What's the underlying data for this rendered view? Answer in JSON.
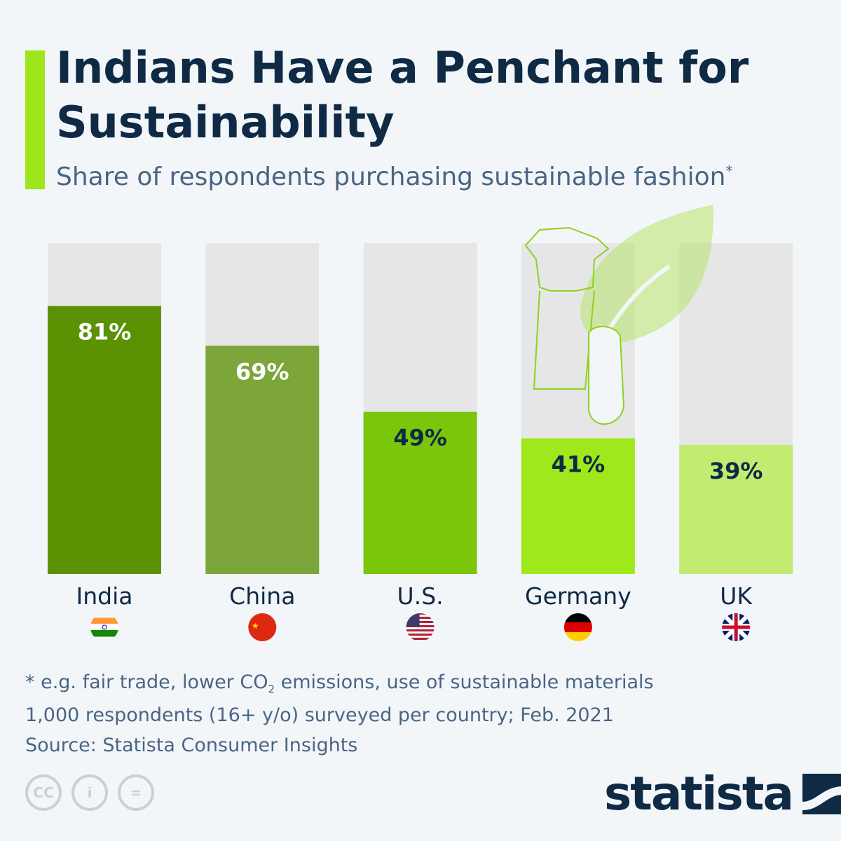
{
  "title": "Indians Have a Penchant for Sustainability",
  "subtitle": "Share of respondents purchasing sustainable fashion",
  "subtitle_mark": "*",
  "chart_data": {
    "type": "bar",
    "categories": [
      "India",
      "China",
      "U.S.",
      "Germany",
      "UK"
    ],
    "values": [
      81,
      69,
      49,
      41,
      39
    ],
    "data_labels": [
      "81%",
      "69%",
      "49%",
      "41%",
      "39%"
    ],
    "ylim": [
      0,
      100
    ],
    "colors": [
      "#5b9203",
      "#7ca63a",
      "#7ac60b",
      "#9fe81b",
      "#c1ec6f"
    ],
    "label_colors": [
      "#ffffff",
      "#ffffff",
      "#0f2a45",
      "#0f2a45",
      "#0f2a45"
    ],
    "track_color": "#e6e6e6",
    "flags": [
      "india-flag-icon",
      "china-flag-icon",
      "us-flag-icon",
      "germany-flag-icon",
      "uk-flag-icon"
    ]
  },
  "notes": {
    "line1_pre": "* e.g. fair trade, lower CO",
    "line1_sub": "2",
    "line1_post": " emissions, use of sustainable materials",
    "line2": "1,000 respondents (16+ y/o) surveyed per country; Feb. 2021",
    "source": "Source: Statista Consumer Insights"
  },
  "license": {
    "cc": "CC",
    "equals": "="
  },
  "brand": "statista"
}
